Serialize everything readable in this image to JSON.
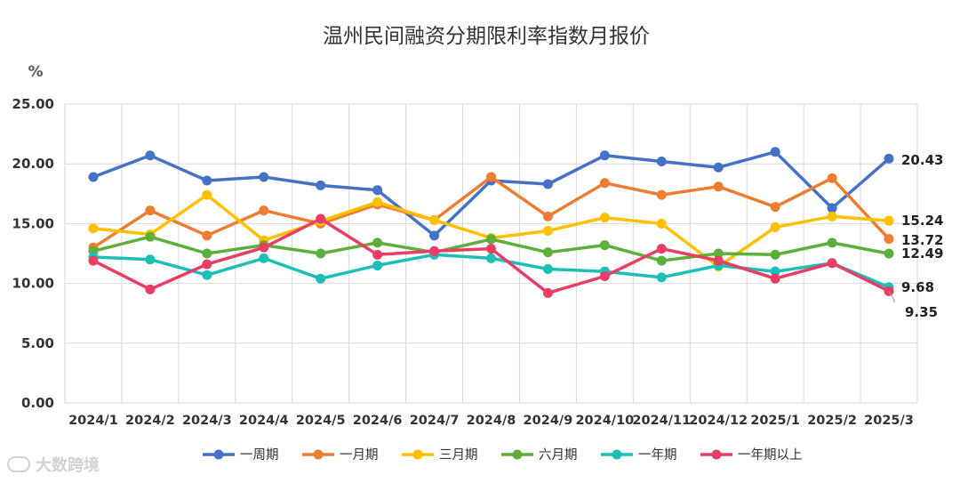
{
  "chart_data": {
    "type": "line",
    "title": "温州民间融资分期限利率指数月报价",
    "ylabel": "%",
    "ylim": [
      0,
      25
    ],
    "yticks": [
      "0.00",
      "5.00",
      "10.00",
      "15.00",
      "20.00",
      "25.00"
    ],
    "grid": true,
    "legend_position": "bottom",
    "categories": [
      "2024/1",
      "2024/2",
      "2024/3",
      "2024/4",
      "2024/5",
      "2024/6",
      "2024/7",
      "2024/8",
      "2024/9",
      "2024/10",
      "2024/11",
      "2024/12",
      "2025/1",
      "2025/2",
      "2025/3"
    ],
    "series": [
      {
        "name": "一周期",
        "color": "#4472C4",
        "values": [
          18.9,
          20.7,
          18.6,
          18.9,
          18.2,
          17.8,
          14.0,
          18.6,
          18.3,
          20.7,
          20.2,
          19.7,
          21.0,
          16.3,
          20.43
        ],
        "end_label": "20.43"
      },
      {
        "name": "一月期",
        "color": "#ED7D31",
        "values": [
          13.0,
          16.1,
          14.0,
          16.1,
          15.0,
          16.6,
          15.3,
          18.9,
          15.6,
          18.4,
          17.4,
          18.1,
          16.4,
          18.8,
          13.72
        ],
        "end_label": "13.72"
      },
      {
        "name": "三月期",
        "color": "#FFC000",
        "values": [
          14.6,
          14.1,
          17.4,
          13.6,
          15.2,
          16.8,
          15.3,
          13.8,
          14.4,
          15.5,
          15.0,
          11.4,
          14.7,
          15.6,
          15.24
        ],
        "end_label": "15.24"
      },
      {
        "name": "六月期",
        "color": "#5BAF3A",
        "values": [
          12.7,
          13.9,
          12.5,
          13.2,
          12.5,
          13.4,
          12.6,
          13.7,
          12.6,
          13.2,
          11.9,
          12.5,
          12.4,
          13.4,
          12.49
        ],
        "end_label": "12.49"
      },
      {
        "name": "一年期",
        "color": "#1BBFB7",
        "values": [
          12.2,
          12.0,
          10.7,
          12.1,
          10.4,
          11.5,
          12.4,
          12.1,
          11.2,
          11.0,
          10.5,
          11.5,
          11.0,
          11.7,
          9.68
        ],
        "end_label": "9.68"
      },
      {
        "name": "一年期以上",
        "color": "#E83E65",
        "values": [
          11.9,
          9.5,
          11.6,
          13.0,
          15.4,
          12.4,
          12.7,
          12.9,
          9.2,
          10.6,
          12.9,
          11.9,
          10.4,
          11.7,
          9.35
        ],
        "end_label": "9.35"
      }
    ]
  },
  "watermark": {
    "text": "大数跨境"
  }
}
